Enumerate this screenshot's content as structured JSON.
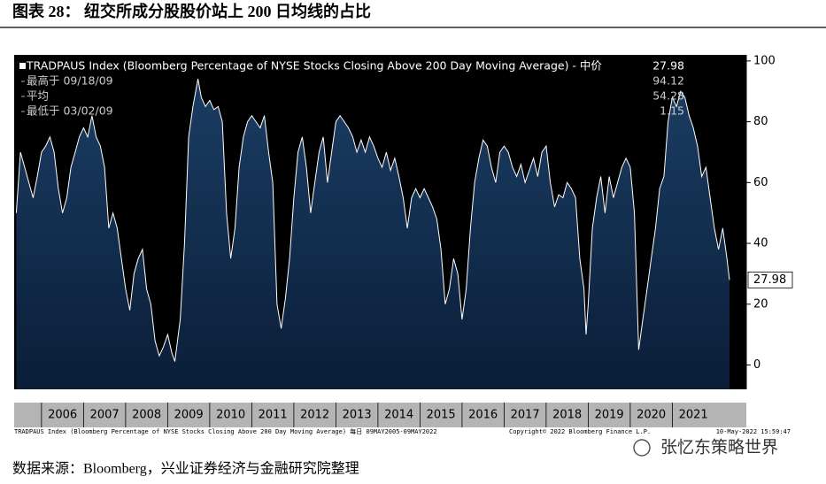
{
  "chart_data": {
    "type": "area",
    "title": "图表 28：  纽交所成分股股价站上 200 日均线的占比",
    "x": [
      2005.4,
      2005.5,
      2005.6,
      2005.7,
      2005.8,
      2005.9,
      2006.0,
      2006.1,
      2006.2,
      2006.3,
      2006.4,
      2006.5,
      2006.6,
      2006.7,
      2006.8,
      2006.9,
      2007.0,
      2007.1,
      2007.2,
      2007.3,
      2007.4,
      2007.5,
      2007.6,
      2007.7,
      2007.8,
      2007.9,
      2008.0,
      2008.1,
      2008.2,
      2008.3,
      2008.4,
      2008.5,
      2008.6,
      2008.7,
      2008.8,
      2008.9,
      2009.0,
      2009.1,
      2009.17,
      2009.3,
      2009.4,
      2009.5,
      2009.6,
      2009.72,
      2009.8,
      2009.9,
      2010.0,
      2010.1,
      2010.2,
      2010.3,
      2010.4,
      2010.5,
      2010.6,
      2010.7,
      2010.8,
      2010.9,
      2011.0,
      2011.1,
      2011.2,
      2011.3,
      2011.4,
      2011.5,
      2011.6,
      2011.7,
      2011.8,
      2011.9,
      2012.0,
      2012.1,
      2012.2,
      2012.3,
      2012.4,
      2012.5,
      2012.6,
      2012.7,
      2012.8,
      2012.9,
      2013.0,
      2013.1,
      2013.2,
      2013.3,
      2013.4,
      2013.5,
      2013.6,
      2013.7,
      2013.8,
      2013.9,
      2014.0,
      2014.1,
      2014.2,
      2014.3,
      2014.4,
      2014.5,
      2014.6,
      2014.7,
      2014.8,
      2014.9,
      2015.0,
      2015.1,
      2015.2,
      2015.3,
      2015.4,
      2015.5,
      2015.6,
      2015.7,
      2015.8,
      2015.9,
      2016.0,
      2016.1,
      2016.2,
      2016.3,
      2016.4,
      2016.5,
      2016.6,
      2016.7,
      2016.8,
      2016.9,
      2017.0,
      2017.1,
      2017.2,
      2017.3,
      2017.4,
      2017.5,
      2017.6,
      2017.7,
      2017.8,
      2017.9,
      2018.0,
      2018.1,
      2018.2,
      2018.3,
      2018.4,
      2018.5,
      2018.6,
      2018.7,
      2018.8,
      2018.9,
      2018.95,
      2019.0,
      2019.1,
      2019.2,
      2019.3,
      2019.4,
      2019.5,
      2019.6,
      2019.7,
      2019.8,
      2019.9,
      2020.0,
      2020.1,
      2020.2,
      2020.3,
      2020.4,
      2020.5,
      2020.6,
      2020.7,
      2020.8,
      2020.9,
      2021.0,
      2021.1,
      2021.2,
      2021.3,
      2021.4,
      2021.5,
      2021.6,
      2021.7,
      2021.8,
      2021.9,
      2022.0,
      2022.1,
      2022.2,
      2022.3,
      2022.36
    ],
    "series": [
      {
        "name": "TRADPAUS Index (Bloomberg Percentage of NYSE Stocks Closing Above 200 Day Moving Average) - 中价",
        "color": "#ffffff",
        "values": [
          50,
          70,
          65,
          60,
          55,
          62,
          70,
          72,
          75,
          70,
          58,
          50,
          55,
          65,
          70,
          75,
          78,
          75,
          82,
          75,
          72,
          65,
          45,
          50,
          45,
          35,
          25,
          18,
          30,
          35,
          38,
          25,
          20,
          8,
          3,
          6,
          10,
          4,
          1.15,
          15,
          40,
          75,
          85,
          94.12,
          88,
          85,
          87,
          84,
          85,
          80,
          50,
          35,
          45,
          65,
          75,
          80,
          82,
          80,
          78,
          82,
          70,
          60,
          20,
          12,
          22,
          35,
          55,
          70,
          75,
          65,
          50,
          60,
          70,
          75,
          60,
          70,
          80,
          82,
          80,
          78,
          75,
          70,
          74,
          70,
          75,
          72,
          68,
          65,
          70,
          64,
          68,
          62,
          55,
          45,
          55,
          58,
          55,
          58,
          55,
          52,
          48,
          38,
          20,
          25,
          35,
          30,
          15,
          25,
          45,
          60,
          68,
          74,
          72,
          65,
          60,
          70,
          72,
          70,
          65,
          62,
          66,
          60,
          64,
          68,
          62,
          70,
          72,
          60,
          52,
          56,
          55,
          60,
          58,
          55,
          35,
          25,
          10,
          20,
          45,
          55,
          62,
          50,
          62,
          55,
          60,
          65,
          68,
          65,
          50,
          5,
          15,
          25,
          35,
          45,
          58,
          62,
          80,
          88,
          85,
          90,
          88,
          82,
          78,
          72,
          62,
          65,
          55,
          45,
          38,
          45,
          35,
          27.98
        ]
      }
    ],
    "stats": [
      {
        "label": "最高于 09/18/09",
        "value": 94.12
      },
      {
        "label": "平均",
        "value": 54.28
      },
      {
        "label": "最低于 03/02/09",
        "value": 1.15
      }
    ],
    "xlim": [
      2005.35,
      2022.76
    ],
    "xticks": [
      2006,
      2007,
      2008,
      2009,
      2010,
      2011,
      2012,
      2013,
      2014,
      2015,
      2016,
      2017,
      2018,
      2019,
      2020,
      2021
    ],
    "ylim": [
      -8,
      102
    ],
    "yticks": [
      0,
      20,
      40,
      60,
      80,
      100
    ],
    "notes": [
      "TRADPAUS Index (Bloomberg Percentage of NYSE Stocks Closing Above 200 Day Moving Average) 每日 09MAY2005-09MAY2022",
      "Copyright© 2022 Bloomberg Finance L.P.",
      "10-May-2022 15:59:47"
    ],
    "watermark": "张忆东策略世界",
    "source": "数据来源：Bloomberg，兴业证券经济与金融研究院整理"
  }
}
